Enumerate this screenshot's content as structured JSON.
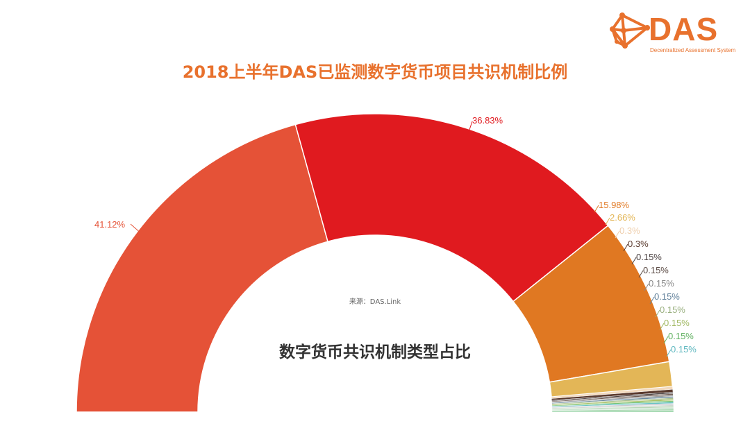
{
  "logo": {
    "name": "DAS",
    "subtitle": "Decentralized Assessment System",
    "color": "#e8712d"
  },
  "title": "2018上半年DAS已监测数字货币项目共识机制比例",
  "center_caption": "数字货币共识机制类型占比",
  "source": "来源：DAS.Link",
  "chart_data": {
    "type": "pie",
    "subtype": "half-donut",
    "title": "2018上半年DAS已监测数字货币项目共识机制比例",
    "subtitle": "数字货币共识机制类型占比",
    "source": "来源：DAS.Link",
    "legend": "none",
    "start_angle_deg": 180,
    "end_angle_deg": 0,
    "slices": [
      {
        "label": "41.12%",
        "value": 41.12,
        "color": "#e55237"
      },
      {
        "label": "36.83%",
        "value": 36.83,
        "color": "#e01a1f"
      },
      {
        "label": "15.98%",
        "value": 15.98,
        "color": "#e07822"
      },
      {
        "label": "2.66%",
        "value": 2.66,
        "color": "#e3b657"
      },
      {
        "label": "0.3%",
        "value": 0.3,
        "color": "#f2d9bd"
      },
      {
        "label": "0.3%",
        "value": 0.3,
        "color": "#5a3a2e"
      },
      {
        "label": "0.15%",
        "value": 0.15,
        "color": "#4a4040"
      },
      {
        "label": "0.15%",
        "value": 0.15,
        "color": "#6e5a52"
      },
      {
        "label": "0.15%",
        "value": 0.15,
        "color": "#9a9a9a"
      },
      {
        "label": "0.15%",
        "value": 0.15,
        "color": "#6a8aa0"
      },
      {
        "label": "0.15%",
        "value": 0.15,
        "color": "#a8c090"
      },
      {
        "label": "0.15%",
        "value": 0.15,
        "color": "#a8c060"
      },
      {
        "label": "0.15%",
        "value": 0.15,
        "color": "#70c070"
      },
      {
        "label": "0.15%",
        "value": 0.15,
        "color": "#60c0c0"
      }
    ],
    "unlabeled_remainder": [
      {
        "value": 0.15,
        "color": "#c8c8d0"
      },
      {
        "value": 0.15,
        "color": "#d0d8d0"
      },
      {
        "value": 0.15,
        "color": "#b8d8b8"
      },
      {
        "value": 0.15,
        "color": "#c0e0c8"
      },
      {
        "value": 0.15,
        "color": "#a8d8b0"
      },
      {
        "value": 0.16,
        "color": "#90d0a0"
      }
    ]
  },
  "labels": [
    {
      "text": "41.12%",
      "color": "#e55237"
    },
    {
      "text": "36.83%",
      "color": "#e01a1f"
    },
    {
      "text": "15.98%",
      "color": "#e07822"
    },
    {
      "text": "2.66%",
      "color": "#e3b657"
    },
    {
      "text": "0.3%",
      "color": "#efcfae"
    },
    {
      "text": "0.3%",
      "color": "#5a3a2e"
    },
    {
      "text": "0.15%",
      "color": "#4a4040"
    },
    {
      "text": "0.15%",
      "color": "#5a4a44"
    },
    {
      "text": "0.15%",
      "color": "#888888"
    },
    {
      "text": "0.15%",
      "color": "#60809a"
    },
    {
      "text": "0.15%",
      "color": "#9ab080"
    },
    {
      "text": "0.15%",
      "color": "#a0b860"
    },
    {
      "text": "0.15%",
      "color": "#60b060"
    },
    {
      "text": "0.15%",
      "color": "#60b8c0"
    }
  ]
}
